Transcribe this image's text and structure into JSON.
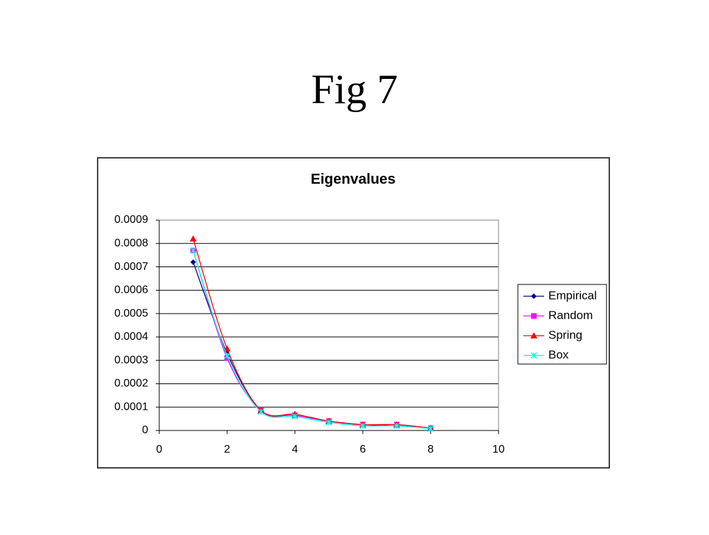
{
  "slide_title": "Fig 7",
  "chart_data": {
    "type": "line",
    "title": "Eigenvalues",
    "x": [
      1,
      2,
      3,
      4,
      5,
      6,
      7,
      8
    ],
    "series": [
      {
        "name": "Empirical",
        "color": "#000080",
        "marker": "diamond",
        "values": [
          0.00072,
          0.00033,
          8.5e-05,
          6.5e-05,
          4e-05,
          2.5e-05,
          2e-05,
          1e-05
        ]
      },
      {
        "name": "Random",
        "color": "#ff00ff",
        "marker": "square",
        "values": [
          0.00077,
          0.00031,
          8.5e-05,
          6.5e-05,
          4e-05,
          2.5e-05,
          2.5e-05,
          1e-05
        ]
      },
      {
        "name": "Spring",
        "color": "#ff0000",
        "marker": "triangle",
        "values": [
          0.00082,
          0.00035,
          8.5e-05,
          7e-05,
          4e-05,
          2.5e-05,
          2.5e-05,
          1e-05
        ]
      },
      {
        "name": "Box",
        "color": "#00ffff",
        "marker": "x",
        "values": [
          0.00077,
          0.00032,
          8e-05,
          6e-05,
          3.5e-05,
          2e-05,
          2e-05,
          8e-06
        ]
      }
    ],
    "xlim": [
      0,
      10
    ],
    "xticks": [
      0,
      2,
      4,
      6,
      8,
      10
    ],
    "ylim": [
      0,
      0.0009
    ],
    "yticks": [
      0,
      0.0001,
      0.0002,
      0.0003,
      0.0004,
      0.0005,
      0.0006,
      0.0007,
      0.0008,
      0.0009
    ],
    "grid": true,
    "smooth": true,
    "legend": "right"
  }
}
